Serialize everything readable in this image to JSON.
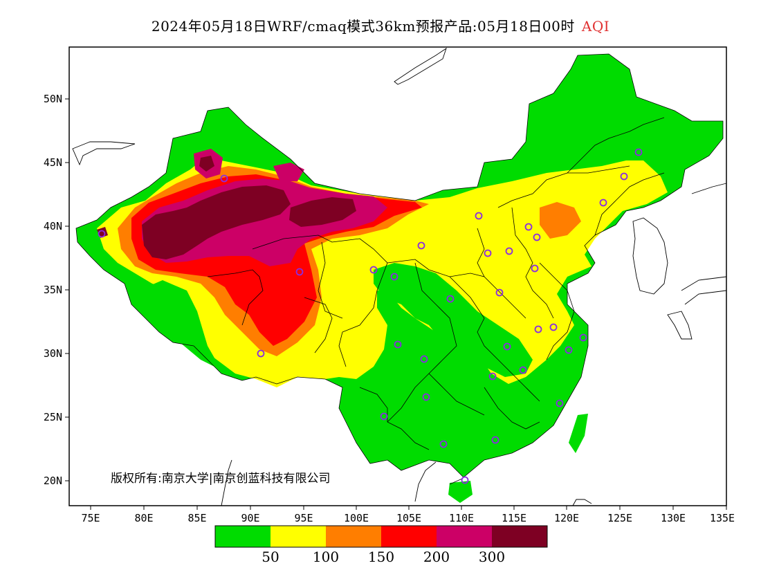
{
  "title": {
    "main": "2024年05月18日WRF/cmaq模式36km预报产品:05月18日00时",
    "variable": "AQI"
  },
  "copyright": "版权所有:南京大学|南京创蓝科技有限公司",
  "lat_ticks": [
    "50N",
    "45N",
    "40N",
    "35N",
    "30N",
    "25N",
    "20N"
  ],
  "lon_ticks": [
    "75E",
    "80E",
    "85E",
    "90E",
    "95E",
    "100E",
    "105E",
    "110E",
    "115E",
    "120E",
    "125E",
    "130E",
    "135E"
  ],
  "colorbar": {
    "colors": [
      "#00dc00",
      "#ffff00",
      "#ff7e00",
      "#ff0000",
      "#cc0066",
      "#7e0023"
    ],
    "labels": [
      "50",
      "100",
      "150",
      "200",
      "300"
    ]
  },
  "map_colors": {
    "good": "#00dc00",
    "moderate": "#ffff00",
    "usg": "#ff7e00",
    "unhealthy": "#ff0000",
    "very_unhealthy": "#cc0066",
    "hazardous": "#7e0023",
    "station_marker": "#8a2be2"
  }
}
